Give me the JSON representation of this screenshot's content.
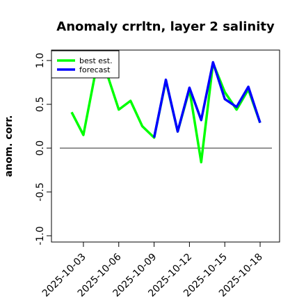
{
  "chart_data": {
    "type": "line",
    "title": "Anomaly crrltn, layer 2 salinity",
    "ylabel": "anom. corr.",
    "xlabel": "",
    "ylim": [
      -1.0,
      1.0
    ],
    "yticks": [
      -1.0,
      -0.5,
      0.0,
      0.5,
      1.0
    ],
    "ytick_labels": [
      "-1.0",
      "-0.5",
      "0.0",
      "0.5",
      "1.0"
    ],
    "x": [
      "2025-10-02",
      "2025-10-03",
      "2025-10-04",
      "2025-10-05",
      "2025-10-06",
      "2025-10-07",
      "2025-10-08",
      "2025-10-09",
      "2025-10-10",
      "2025-10-11",
      "2025-10-12",
      "2025-10-13",
      "2025-10-14",
      "2025-10-15",
      "2025-10-16",
      "2025-10-17",
      "2025-10-18"
    ],
    "xticks": [
      "2025-10-03",
      "2025-10-06",
      "2025-10-09",
      "2025-10-12",
      "2025-10-15",
      "2025-10-18"
    ],
    "xtick_colors": [
      "#000000",
      "#000000",
      "#228b22",
      "#000000",
      "#000000",
      "#000000"
    ],
    "reference_line": {
      "y": 0.0,
      "color": "#555555"
    },
    "grid": false,
    "legend_position": "top-left",
    "series": [
      {
        "name": "best est.",
        "color": "#00ff00",
        "values": [
          0.41,
          0.15,
          0.85,
          0.85,
          0.44,
          0.54,
          0.25,
          0.12,
          0.77,
          0.19,
          0.67,
          -0.16,
          0.97,
          0.64,
          0.44,
          0.67,
          0.29
        ]
      },
      {
        "name": "forecast",
        "color": "#0000ff",
        "values": [
          null,
          null,
          null,
          null,
          null,
          null,
          null,
          0.12,
          0.78,
          0.19,
          0.69,
          0.32,
          0.98,
          0.56,
          0.47,
          0.7,
          0.29
        ]
      }
    ]
  }
}
